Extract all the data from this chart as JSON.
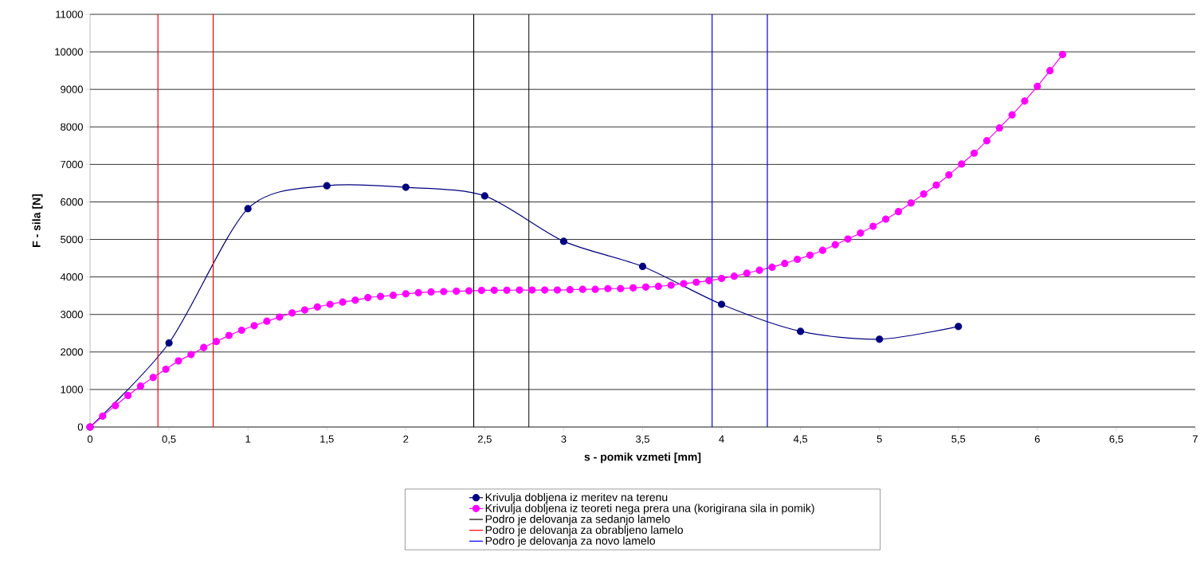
{
  "chart_data": {
    "type": "line",
    "xlabel": "s - pomik vzmeti [mm]",
    "ylabel": "F - sila [N]",
    "xlim": [
      0,
      7
    ],
    "ylim": [
      0,
      11000
    ],
    "xticks": [
      0,
      {
        "value": 0.5,
        "label": "0,5"
      },
      1,
      {
        "value": 1.5,
        "label": "1,5"
      },
      2,
      {
        "value": 2.5,
        "label": "2,5"
      },
      3,
      {
        "value": 3.5,
        "label": "3,5"
      },
      4,
      {
        "value": 4.5,
        "label": "4,5"
      },
      5,
      {
        "value": 5.5,
        "label": "5,5"
      },
      6,
      {
        "value": 6.5,
        "label": "6,5"
      },
      7
    ],
    "yticks": [
      0,
      1000,
      2000,
      3000,
      4000,
      5000,
      6000,
      7000,
      8000,
      9000,
      10000,
      11000
    ],
    "grid": "y",
    "legend": "bottom",
    "marker": "circle",
    "line_style": "solid",
    "series": [
      {
        "name": "Krivulja dobljena iz meritev na terenu",
        "color": "#000080",
        "x": [
          0,
          0.5,
          1,
          1.5,
          2,
          2.5,
          3,
          3.5,
          4,
          4.5,
          5,
          5.5
        ],
        "values": [
          0,
          2240,
          5820,
          6430,
          6390,
          6160,
          4950,
          4280,
          3270,
          2550,
          2340,
          2680
        ]
      },
      {
        "name": "Krivulja dobljena iz teoreti nega prera una (korigirana sila in pomik)",
        "color": "#ff00ff",
        "x": [
          0,
          0.08,
          0.16,
          0.24,
          0.32,
          0.4,
          0.48,
          0.56,
          0.64,
          0.72,
          0.8,
          0.88,
          0.96,
          1.04,
          1.12,
          1.2,
          1.28,
          1.36,
          1.44,
          1.52,
          1.6,
          1.68,
          1.76,
          1.84,
          1.92,
          2.0,
          2.08,
          2.16,
          2.24,
          2.32,
          2.4,
          2.48,
          2.56,
          2.64,
          2.72,
          2.8,
          2.88,
          2.96,
          3.04,
          3.12,
          3.2,
          3.28,
          3.36,
          3.44,
          3.52,
          3.6,
          3.68,
          3.76,
          3.84,
          3.92,
          4.0,
          4.08,
          4.16,
          4.24,
          4.32,
          4.4,
          4.48,
          4.56,
          4.64,
          4.72,
          4.8,
          4.88,
          4.96,
          5.04,
          5.12,
          5.2,
          5.28,
          5.36,
          5.44,
          5.52,
          5.6,
          5.68,
          5.76,
          5.84,
          5.92,
          6.0,
          6.08,
          6.16
        ],
        "values": [
          0,
          290,
          570,
          840,
          1090,
          1320,
          1540,
          1760,
          1930,
          2120,
          2280,
          2440,
          2580,
          2700,
          2820,
          2930,
          3040,
          3120,
          3200,
          3270,
          3330,
          3380,
          3450,
          3480,
          3510,
          3550,
          3580,
          3600,
          3610,
          3620,
          3630,
          3640,
          3645,
          3645,
          3650,
          3650,
          3650,
          3650,
          3660,
          3670,
          3670,
          3690,
          3690,
          3710,
          3730,
          3750,
          3780,
          3820,
          3860,
          3900,
          3960,
          4020,
          4100,
          4180,
          4260,
          4360,
          4470,
          4580,
          4710,
          4860,
          5010,
          5170,
          5350,
          5540,
          5740,
          5970,
          6210,
          6450,
          6720,
          7010,
          7300,
          7630,
          7970,
          8320,
          8690,
          9080,
          9500,
          9930
        ]
      },
      {
        "name": "Podro je delovanja za sedanjo lamelo",
        "color": "#000000",
        "marker": "none",
        "x": [
          2.43,
          2.43,
          null,
          2.78,
          2.78
        ],
        "values": [
          0,
          11000,
          null,
          11000,
          0
        ]
      },
      {
        "name": "Podro je delovanja za obrabljeno lamelo",
        "color": "#ff0000",
        "marker": "none",
        "x": [
          0.43,
          0.43,
          null,
          0.78,
          0.78
        ],
        "values": [
          0,
          11000,
          null,
          11000,
          0
        ]
      },
      {
        "name": "Podro je delovanja za novo lamelo",
        "color": "#0000ff",
        "marker": "none",
        "x": [
          3.94,
          3.94,
          null,
          4.29,
          4.29
        ],
        "values": [
          0,
          11000,
          null,
          11000,
          0
        ]
      }
    ]
  }
}
